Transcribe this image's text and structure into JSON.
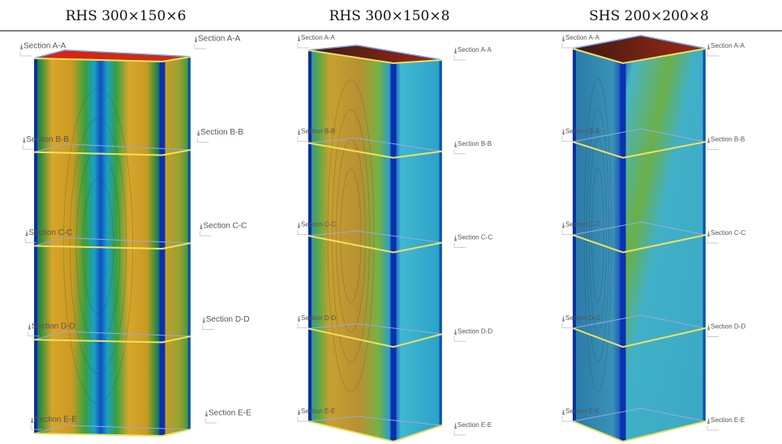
{
  "panels": [
    {
      "title": "RHS 300×150×6",
      "sections": [
        "Section A-A",
        "Section B-B",
        "Section C-C",
        "Section D-D",
        "Section E-E"
      ]
    },
    {
      "title": "RHS 300×150×8",
      "sections": [
        "Section A-A",
        "Section B-B",
        "Section C-C",
        "Section D-D",
        "Section E-E"
      ]
    },
    {
      "title": "SHS 200×200×8",
      "sections": [
        "Section A-A",
        "Section B-B",
        "Section C-C",
        "Section D-D",
        "Section E-E"
      ]
    }
  ]
}
